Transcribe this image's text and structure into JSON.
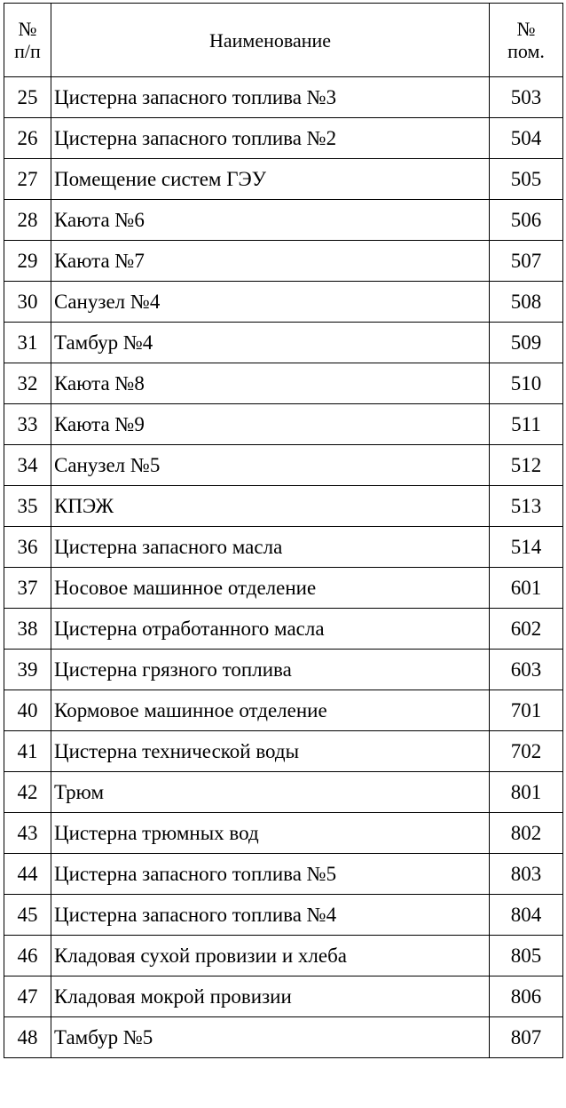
{
  "header": {
    "num_line1": "№",
    "num_line2": "п/п",
    "name": "Наименование",
    "room_line1": "№",
    "room_line2": "пом."
  },
  "rows": [
    {
      "num": "25",
      "name": "Цистерна запасного топлива №3",
      "room": "503"
    },
    {
      "num": "26",
      "name": "Цистерна запасного топлива №2",
      "room": "504"
    },
    {
      "num": "27",
      "name": "Помещение систем ГЭУ",
      "room": "505"
    },
    {
      "num": "28",
      "name": "Каюта №6",
      "room": "506"
    },
    {
      "num": "29",
      "name": "Каюта №7",
      "room": "507"
    },
    {
      "num": "30",
      "name": "Санузел №4",
      "room": "508"
    },
    {
      "num": "31",
      "name": "Тамбур №4",
      "room": "509"
    },
    {
      "num": "32",
      "name": "Каюта №8",
      "room": "510"
    },
    {
      "num": "33",
      "name": "Каюта №9",
      "room": "511"
    },
    {
      "num": "34",
      "name": "Санузел №5",
      "room": "512"
    },
    {
      "num": "35",
      "name": "КПЭЖ",
      "room": "513"
    },
    {
      "num": "36",
      "name": "Цистерна запасного масла",
      "room": "514"
    },
    {
      "num": "37",
      "name": "Носовое машинное отделение",
      "room": "601"
    },
    {
      "num": "38",
      "name": "Цистерна отработанного масла",
      "room": "602"
    },
    {
      "num": "39",
      "name": "Цистерна грязного топлива",
      "room": "603"
    },
    {
      "num": "40",
      "name": "Кормовое машинное отделение",
      "room": "701"
    },
    {
      "num": "41",
      "name": "Цистерна технической воды",
      "room": "702"
    },
    {
      "num": "42",
      "name": "Трюм",
      "room": "801"
    },
    {
      "num": "43",
      "name": "Цистерна трюмных вод",
      "room": "802"
    },
    {
      "num": "44",
      "name": "Цистерна запасного топлива №5",
      "room": "803"
    },
    {
      "num": "45",
      "name": "Цистерна запасного топлива №4",
      "room": "804"
    },
    {
      "num": "46",
      "name": "Кладовая сухой провизии и хлеба",
      "room": "805"
    },
    {
      "num": "47",
      "name": "Кладовая мокрой провизии",
      "room": "806"
    },
    {
      "num": "48",
      "name": "Тамбур №5",
      "room": "807"
    }
  ]
}
